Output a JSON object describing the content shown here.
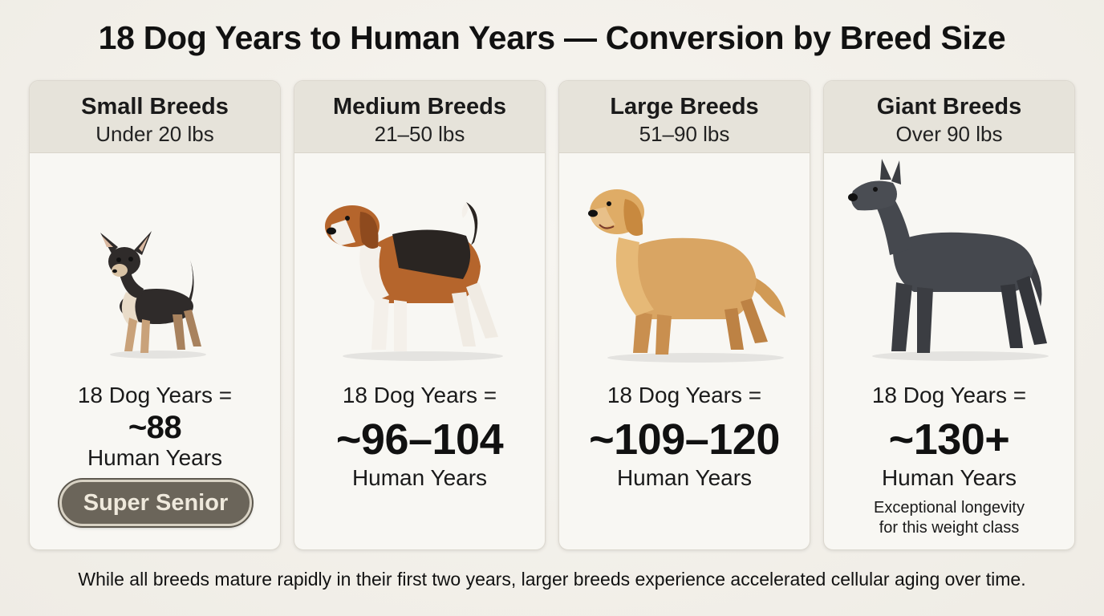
{
  "title": "18 Dog Years to Human Years — Conversion by Breed Size",
  "cards": [
    {
      "name": "Small Breeds",
      "weight": "Under 20 lbs",
      "line1": "18 Dog Years =",
      "value": "~88",
      "human": "Human Years",
      "badge": "Super Senior",
      "dog_icon": "chihuahua-illustration"
    },
    {
      "name": "Medium Breeds",
      "weight": "21–50 lbs",
      "line1": "18 Dog Years =",
      "value": "~96–104",
      "human": "Human Years",
      "dog_icon": "beagle-illustration"
    },
    {
      "name": "Large Breeds",
      "weight": "51–90 lbs",
      "line1": "18 Dog Years =",
      "value": "~109–120",
      "human": "Human Years",
      "dog_icon": "golden-retriever-illustration"
    },
    {
      "name": "Giant Breeds",
      "weight": "Over 90 lbs",
      "line1": "18 Dog Years =",
      "value": "~130+",
      "human": "Human Years",
      "note_line1": "Exceptional longevity",
      "note_line2": "for this weight class",
      "dog_icon": "great-dane-illustration"
    }
  ],
  "footer": "While all breeds mature rapidly in their first two years, larger breeds experience accelerated cellular aging over time.",
  "colors": {
    "background": "#f3f1eb",
    "card": "#f8f7f3",
    "card_header": "#e6e3da",
    "badge": "#6b655a",
    "badge_text": "#efe9dc"
  }
}
